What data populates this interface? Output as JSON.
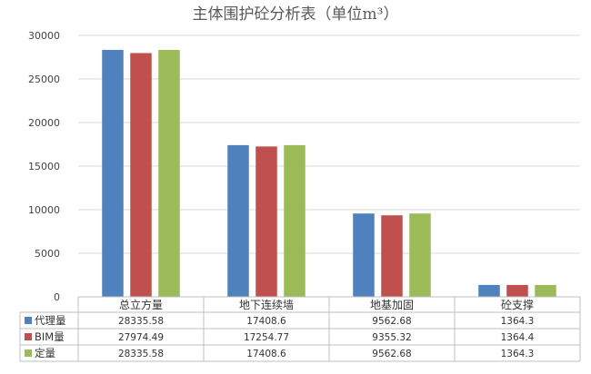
{
  "chart_data": {
    "type": "bar",
    "title": "主体围护砼分析表（单位m³）",
    "categories": [
      "总立方量",
      "地下连续墙",
      "地基加固",
      "砼支撑"
    ],
    "series": [
      {
        "name": "代理量",
        "color": "#4F81BD",
        "values": [
          28335.58,
          17408.6,
          9562.68,
          1364.3
        ],
        "labels": [
          "28335.58",
          "17408.6",
          "9562.68",
          "1364.3"
        ]
      },
      {
        "name": "BIM量",
        "color": "#C0504D",
        "values": [
          27974.49,
          17254.77,
          9355.32,
          1364.4
        ],
        "labels": [
          "27974.49",
          "17254.77",
          "9355.32",
          "1364.4"
        ]
      },
      {
        "name": "定量",
        "color": "#9BBB59",
        "values": [
          28335.58,
          17408.6,
          9562.68,
          1364.3
        ],
        "labels": [
          "28335.58",
          "17408.6",
          "9562.68",
          "1364.3"
        ]
      }
    ],
    "yticks": [
      0,
      5000,
      10000,
      15000,
      20000,
      25000,
      30000
    ],
    "ylim": [
      0,
      30000
    ],
    "grid": true,
    "data_table": true,
    "xlabel": "",
    "ylabel": ""
  }
}
